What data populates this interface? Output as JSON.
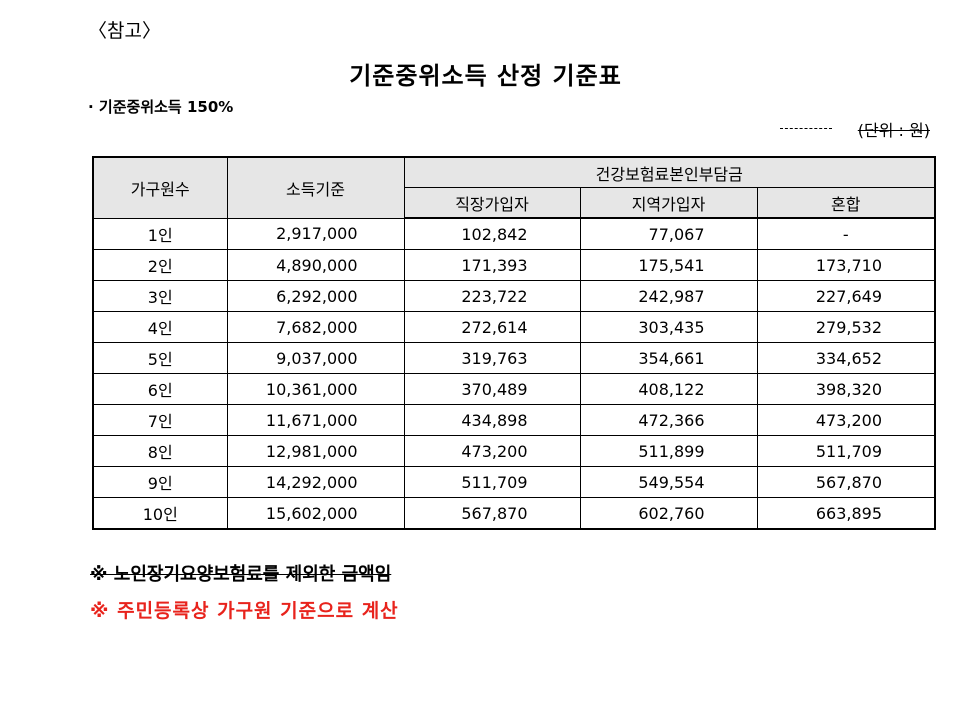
{
  "reference_label": "〈참고〉",
  "title": "기준중위소득 산정 기준표",
  "basis": "· 기준중위소득 150%",
  "unit": "(단위 : 원)",
  "headers": {
    "household": "가구원수",
    "income": "소득기준",
    "premium_group": "건강보험료본인부담금",
    "employee": "직장가입자",
    "regional": "지역가입자",
    "mixed": "혼합"
  },
  "rows": [
    {
      "household": "1인",
      "income": "2,917,000",
      "employee": "102,842",
      "regional": "77,067",
      "mixed": "-"
    },
    {
      "household": "2인",
      "income": "4,890,000",
      "employee": "171,393",
      "regional": "175,541",
      "mixed": "173,710"
    },
    {
      "household": "3인",
      "income": "6,292,000",
      "employee": "223,722",
      "regional": "242,987",
      "mixed": "227,649"
    },
    {
      "household": "4인",
      "income": "7,682,000",
      "employee": "272,614",
      "regional": "303,435",
      "mixed": "279,532"
    },
    {
      "household": "5인",
      "income": "9,037,000",
      "employee": "319,763",
      "regional": "354,661",
      "mixed": "334,652"
    },
    {
      "household": "6인",
      "income": "10,361,000",
      "employee": "370,489",
      "regional": "408,122",
      "mixed": "398,320"
    },
    {
      "household": "7인",
      "income": "11,671,000",
      "employee": "434,898",
      "regional": "472,366",
      "mixed": "473,200"
    },
    {
      "household": "8인",
      "income": "12,981,000",
      "employee": "473,200",
      "regional": "511,899",
      "mixed": "511,709"
    },
    {
      "household": "9인",
      "income": "14,292,000",
      "employee": "511,709",
      "regional": "549,554",
      "mixed": "567,870"
    },
    {
      "household": "10인",
      "income": "15,602,000",
      "employee": "567,870",
      "regional": "602,760",
      "mixed": "663,895"
    }
  ],
  "notes": {
    "struck": "※ 노인장기요양보험료를 제외한 금액임",
    "main": "※ 주민등록상 가구원 기준으로 계산"
  },
  "colors": {
    "header_bg": "#e6e6e6",
    "note_red": "#e8231c"
  }
}
